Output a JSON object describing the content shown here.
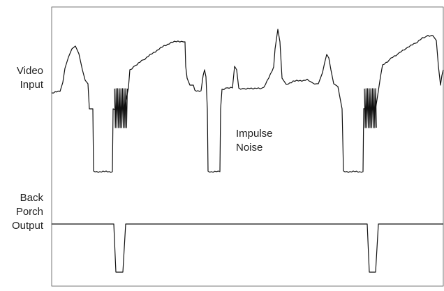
{
  "labels": {
    "video_input": [
      "Video",
      "Input"
    ],
    "impulse_noise": [
      "Impulse",
      "Noise"
    ],
    "back_porch_output": [
      "Back",
      "Porch",
      "Output"
    ]
  },
  "colors": {
    "trace": "#111111",
    "frame": "#555555",
    "text": "#222222"
  }
}
